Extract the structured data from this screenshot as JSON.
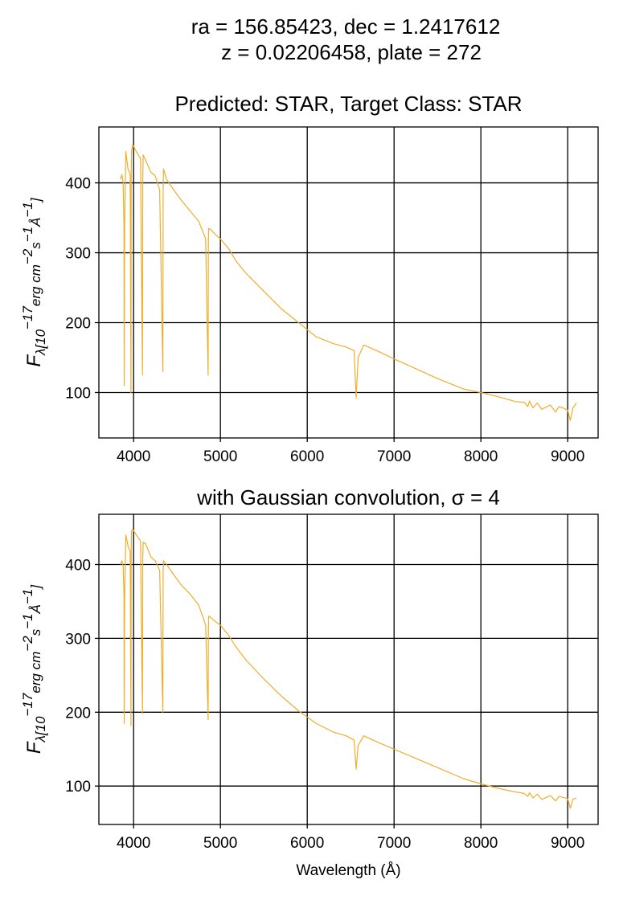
{
  "suptitle": {
    "line1": "ra = 156.85423, dec = 1.2417612",
    "line2": "z = 0.02206458, plate = 272"
  },
  "colors": {
    "spectrum": "#f0ad2e",
    "grid": "#000000",
    "axes": "#000000"
  },
  "chart_data": [
    {
      "type": "line",
      "title": "Predicted: STAR, Target Class: STAR",
      "xlabel": "",
      "ylabel_parts": {
        "F": "F",
        "sub": "λ[10",
        "e1": "−17",
        "m1": "erg cm",
        "e2": "−2",
        "m2": "s",
        "e3": "−1",
        "m3": "Å",
        "e4": "−1",
        "close": "]"
      },
      "xlim": [
        3600,
        9350
      ],
      "ylim": [
        35,
        480
      ],
      "xticks": [
        4000,
        5000,
        6000,
        7000,
        8000,
        9000
      ],
      "yticks": [
        100,
        200,
        300,
        400
      ],
      "grid": true,
      "series": [
        {
          "x": [
            3850,
            3865,
            3880,
            3889,
            3892,
            3896,
            3910,
            3925,
            3935,
            3960,
            3969,
            3972,
            3976,
            3990,
            4030,
            4080,
            4102,
            4106,
            4110,
            4140,
            4200,
            4250,
            4300,
            4337,
            4340,
            4344,
            4380,
            4450,
            4550,
            4650,
            4750,
            4830,
            4858,
            4861,
            4864,
            4890,
            4950,
            5000,
            5100,
            5170,
            5200,
            5300,
            5500,
            5700,
            5900,
            6100,
            6300,
            6450,
            6540,
            6563,
            6586,
            6650,
            6800,
            7000,
            7200,
            7500,
            7800,
            8000,
            8200,
            8400,
            8500,
            8540,
            8560,
            8600,
            8650,
            8700,
            8800,
            8860,
            8900,
            9000,
            9030,
            9060,
            9100
          ],
          "y": [
            405,
            412,
            400,
            340,
            110,
            335,
            445,
            430,
            420,
            412,
            100,
            410,
            445,
            455,
            445,
            435,
            125,
            405,
            440,
            432,
            415,
            410,
            390,
            130,
            385,
            420,
            405,
            392,
            375,
            360,
            345,
            320,
            125,
            310,
            335,
            333,
            325,
            320,
            305,
            290,
            285,
            270,
            245,
            220,
            200,
            180,
            170,
            165,
            160,
            92,
            150,
            168,
            160,
            148,
            137,
            120,
            105,
            100,
            94,
            87,
            86,
            80,
            88,
            78,
            85,
            76,
            82,
            72,
            80,
            75,
            60,
            78,
            85
          ]
        }
      ]
    },
    {
      "type": "line",
      "title": "with Gaussian convolution, σ = 4",
      "xlabel": "Wavelength (Å)",
      "ylabel_parts": {
        "F": "F",
        "sub": "λ[10",
        "e1": "−17",
        "m1": "erg cm",
        "e2": "−2",
        "m2": "s",
        "e3": "−1",
        "m3": "Å",
        "e4": "−1",
        "close": "]"
      },
      "xlim": [
        3600,
        9350
      ],
      "ylim": [
        48,
        468
      ],
      "xticks": [
        4000,
        5000,
        6000,
        7000,
        8000,
        9000
      ],
      "yticks": [
        100,
        200,
        300,
        400
      ],
      "grid": true,
      "series": [
        {
          "x": [
            3850,
            3865,
            3880,
            3889,
            3892,
            3896,
            3910,
            3925,
            3935,
            3960,
            3969,
            3972,
            3976,
            3990,
            4030,
            4080,
            4102,
            4106,
            4110,
            4140,
            4200,
            4250,
            4300,
            4337,
            4340,
            4344,
            4380,
            4450,
            4550,
            4650,
            4750,
            4830,
            4858,
            4861,
            4864,
            4890,
            4950,
            5000,
            5100,
            5170,
            5200,
            5300,
            5500,
            5700,
            5900,
            6100,
            6300,
            6450,
            6540,
            6563,
            6586,
            6650,
            6800,
            7000,
            7200,
            7500,
            7800,
            8000,
            8200,
            8400,
            8500,
            8540,
            8560,
            8600,
            8650,
            8700,
            8800,
            8860,
            8900,
            9000,
            9030,
            9060,
            9100
          ],
          "y": [
            400,
            405,
            398,
            360,
            185,
            350,
            440,
            432,
            425,
            418,
            182,
            420,
            445,
            448,
            440,
            432,
            198,
            410,
            430,
            428,
            410,
            405,
            392,
            200,
            390,
            405,
            400,
            388,
            372,
            360,
            345,
            318,
            190,
            305,
            330,
            328,
            322,
            318,
            303,
            290,
            285,
            270,
            245,
            222,
            202,
            185,
            173,
            168,
            162,
            123,
            155,
            168,
            160,
            150,
            140,
            125,
            110,
            103,
            97,
            92,
            90,
            86,
            91,
            84,
            89,
            82,
            87,
            80,
            86,
            83,
            70,
            82,
            84
          ]
        }
      ]
    }
  ]
}
